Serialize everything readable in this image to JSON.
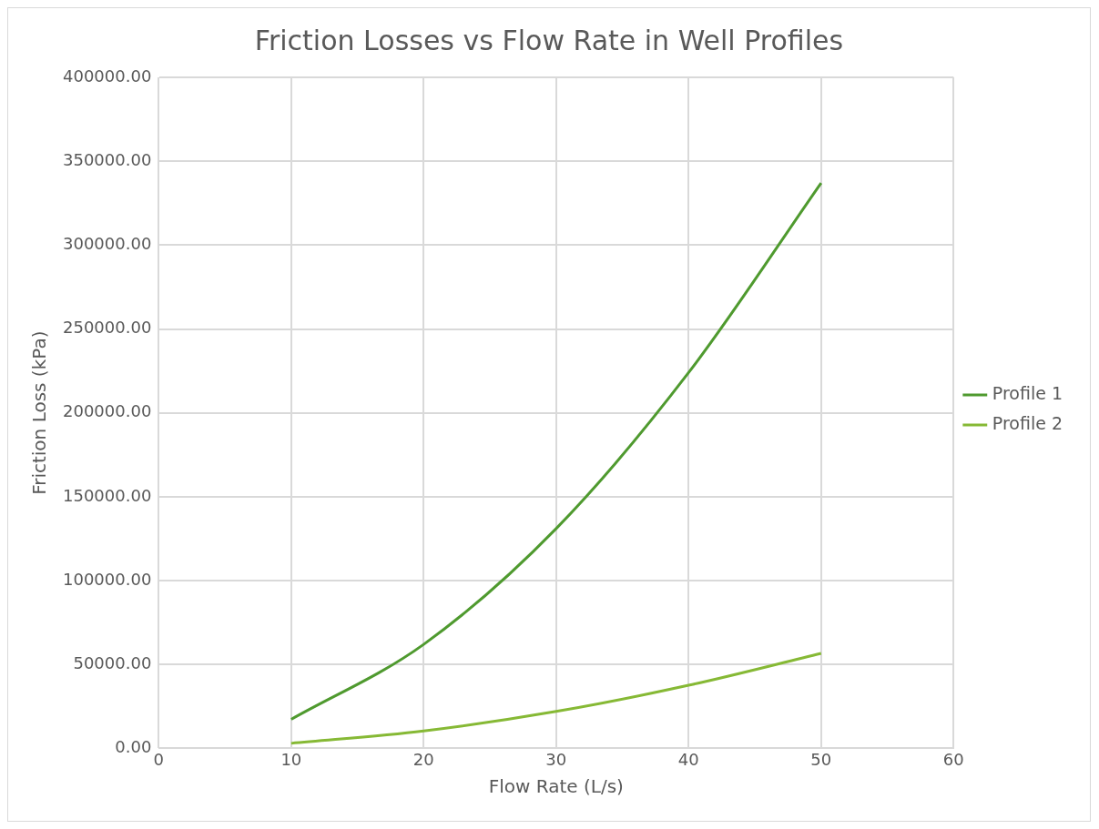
{
  "chart_data": {
    "type": "line",
    "title": "Friction Losses vs Flow Rate in Well Profiles",
    "xlabel": "Flow Rate (L/s)",
    "ylabel": "Friction Loss (kPa)",
    "x": [
      10,
      20,
      30,
      40,
      50
    ],
    "series": [
      {
        "name": "Profile 1",
        "color": "#4f9a2f",
        "values": [
          17300,
          62000,
          131000,
          224000,
          337000
        ]
      },
      {
        "name": "Profile 2",
        "color": "#86b935",
        "values": [
          3000,
          10400,
          22000,
          37600,
          56600
        ]
      }
    ],
    "xlim": [
      0,
      60
    ],
    "xticks": [
      0,
      10,
      20,
      30,
      40,
      50,
      60
    ],
    "ylim": [
      0,
      400000
    ],
    "yticks": [
      {
        "value": 0,
        "label": "0.00"
      },
      {
        "value": 50000,
        "label": "50000.00"
      },
      {
        "value": 100000,
        "label": "100000.00"
      },
      {
        "value": 150000,
        "label": "150000.00"
      },
      {
        "value": 200000,
        "label": "200000.00"
      },
      {
        "value": 250000,
        "label": "250000.00"
      },
      {
        "value": 300000,
        "label": "300000.00"
      },
      {
        "value": 350000,
        "label": "350000.00"
      },
      {
        "value": 400000,
        "label": "400000.00"
      }
    ],
    "grid": true,
    "legend": "right",
    "marker": "none",
    "line_style": "solid"
  }
}
